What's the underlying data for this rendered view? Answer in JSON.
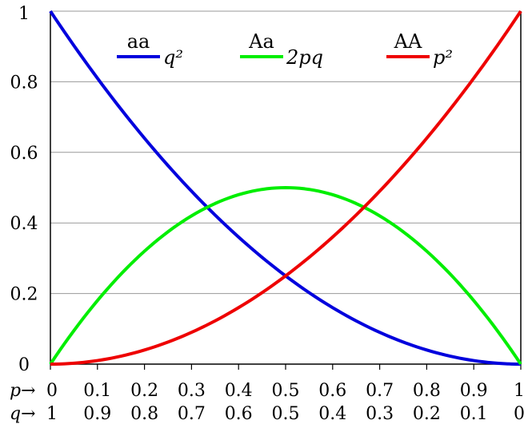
{
  "chart_data": {
    "type": "line",
    "x": [
      0,
      0.1,
      0.2,
      0.3,
      0.4,
      0.5,
      0.6,
      0.7,
      0.8,
      0.9,
      1
    ],
    "series": [
      {
        "legend_genotype": "aa",
        "legend_formula": "q²",
        "color": "#0000dd",
        "values": [
          1,
          0.81,
          0.64,
          0.49,
          0.36,
          0.25,
          0.16,
          0.09,
          0.04,
          0.01,
          0
        ]
      },
      {
        "legend_genotype": "Aa",
        "legend_formula": "2pq",
        "color": "#00ee00",
        "values": [
          0,
          0.18,
          0.32,
          0.42,
          0.48,
          0.5,
          0.48,
          0.42,
          0.32,
          0.18,
          0
        ]
      },
      {
        "legend_genotype": "AA",
        "legend_formula": "p²",
        "color": "#ee0000",
        "values": [
          0,
          0.01,
          0.04,
          0.09,
          0.16,
          0.25,
          0.36,
          0.49,
          0.64,
          0.81,
          1
        ]
      }
    ],
    "xlim": [
      0,
      1
    ],
    "ylim": [
      0,
      1
    ],
    "y_ticks": [
      "0",
      "0.2",
      "0.4",
      "0.6",
      "0.8",
      "1"
    ],
    "x_tick_rows": [
      {
        "label": "p→",
        "ticks": [
          "0",
          "0.1",
          "0.2",
          "0.3",
          "0.4",
          "0.5",
          "0.6",
          "0.7",
          "0.8",
          "0.9",
          "1"
        ]
      },
      {
        "label": "q→",
        "ticks": [
          "1",
          "0.9",
          "0.8",
          "0.7",
          "0.6",
          "0.5",
          "0.4",
          "0.3",
          "0.2",
          "0.1",
          "0"
        ]
      }
    ],
    "grid": true,
    "legend_position": "top"
  }
}
